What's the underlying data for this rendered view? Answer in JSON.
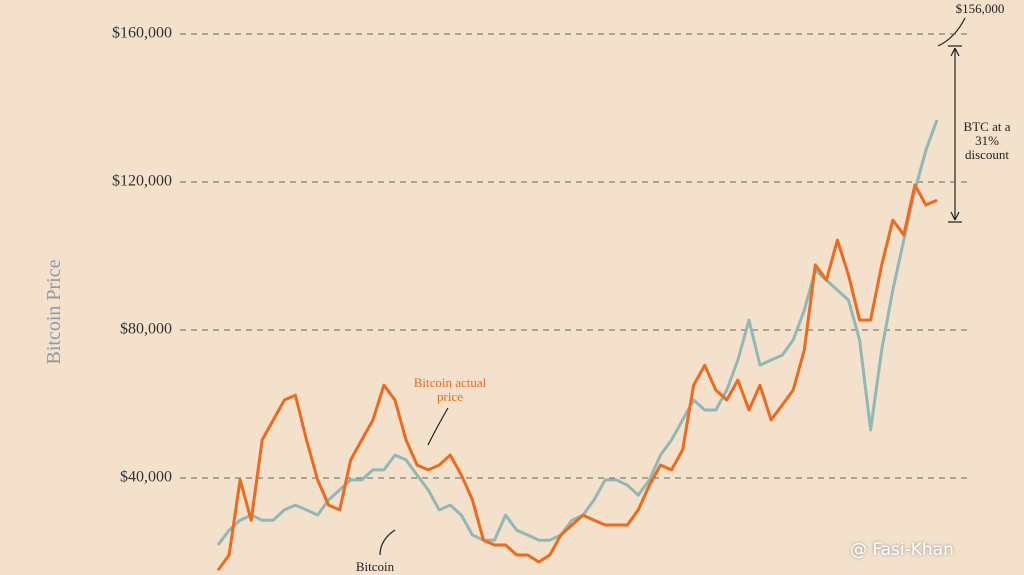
{
  "chart_data": {
    "type": "line",
    "y_axis_label": "Bitcoin Price",
    "categories": [
      null,
      null,
      null,
      null,
      null,
      null,
      null,
      null,
      null,
      null,
      null,
      null,
      null,
      null,
      null,
      null,
      null,
      null,
      null,
      null,
      null,
      null,
      null,
      null,
      null,
      null,
      null,
      null,
      null,
      null,
      null,
      null,
      null,
      null,
      null,
      null,
      null,
      null,
      null,
      null,
      null,
      null,
      null,
      null,
      null,
      null,
      null,
      null,
      null,
      null,
      null,
      null,
      null,
      null,
      null,
      null,
      null,
      null,
      null,
      null,
      null,
      null,
      null,
      null,
      null,
      null
    ],
    "series": [
      {
        "name": "Bitcoin actual price",
        "color": "#ee6a1c",
        "values": [
          15100,
          19200,
          39500,
          28600,
          50300,
          55700,
          61100,
          62400,
          50300,
          39500,
          32700,
          31400,
          44900,
          50300,
          55700,
          65100,
          61100,
          50300,
          43500,
          42200,
          43500,
          46200,
          40800,
          34100,
          23200,
          21900,
          21900,
          19200,
          19200,
          17300,
          19200,
          24600,
          27300,
          30000,
          28600,
          27300,
          27300,
          27300,
          31400,
          38100,
          43500,
          42200,
          47600,
          65100,
          70500,
          63800,
          61100,
          66500,
          58400,
          65100,
          55700,
          59700,
          63800,
          74600,
          97600,
          93500,
          104300,
          94900,
          82700,
          82700,
          97600,
          109700,
          105700,
          119200,
          113800,
          115100
        ]
      },
      {
        "name": "Bitcoin",
        "color": "#8fb8b8",
        "values": [
          21900,
          25900,
          28600,
          30000,
          28600,
          28600,
          31400,
          32700,
          31400,
          30000,
          34100,
          36800,
          39500,
          39500,
          42200,
          42200,
          46200,
          44900,
          40800,
          36800,
          31400,
          32700,
          30000,
          24600,
          23200,
          23200,
          30000,
          25900,
          24600,
          23200,
          23200,
          24600,
          28600,
          30000,
          34100,
          39500,
          39500,
          38100,
          35400,
          39500,
          46200,
          50300,
          55700,
          61100,
          58400,
          58400,
          63800,
          71900,
          82700,
          70500,
          71900,
          73200,
          77300,
          85400,
          96200,
          93500,
          90800,
          88100,
          77300,
          53000,
          74600,
          90800,
          104300,
          117800,
          128600,
          136800
        ]
      }
    ],
    "ylim": [
      13800,
      169200
    ],
    "yticks": [
      {
        "value": 40000,
        "label": "$40,000"
      },
      {
        "value": 80000,
        "label": "$80,000"
      },
      {
        "value": 120000,
        "label": "$120,000"
      },
      {
        "value": 160000,
        "label": "$160,000"
      }
    ],
    "grid": true,
    "annotations": [
      "$156,000",
      "BTC at a 31% discount"
    ],
    "watermark": "@ Fasi-Khan"
  }
}
